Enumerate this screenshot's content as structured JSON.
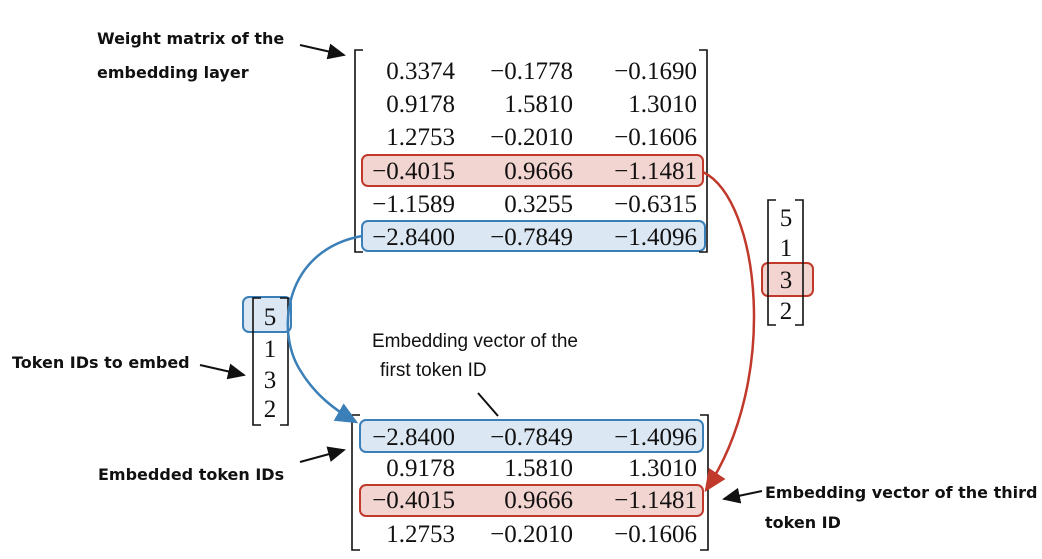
{
  "weight_matrix_label": [
    "Weight matrix of the",
    "embedding layer"
  ],
  "weight_matrix": [
    [
      "0.3374",
      "−0.1778",
      "−0.1690"
    ],
    [
      "0.9178",
      "1.5810",
      "1.3010"
    ],
    [
      "1.2753",
      "−0.2010",
      "−0.1606"
    ],
    [
      "−0.4015",
      "0.9666",
      "−1.1481"
    ],
    [
      "−1.1589",
      "0.3255",
      "−0.6315"
    ],
    [
      "−2.8400",
      "−0.7849",
      "−1.4096"
    ]
  ],
  "token_ids_label": "Token IDs to embed",
  "token_ids": [
    "5",
    "1",
    "3",
    "2"
  ],
  "token_ids_right": [
    "5",
    "1",
    "3",
    "2"
  ],
  "first_vector_label": [
    "Embedding vector of the",
    "first token ID"
  ],
  "embedded_label": "Embedded token IDs",
  "embedded_matrix": [
    [
      "−2.8400",
      "−0.7849",
      "−1.4096"
    ],
    [
      "0.9178",
      "1.5810",
      "1.3010"
    ],
    [
      "−0.4015",
      "0.9666",
      "−1.1481"
    ],
    [
      "1.2753",
      "−0.2010",
      "−0.1606"
    ]
  ],
  "third_vector_label": [
    "Embedding vector of the third",
    "token ID"
  ]
}
